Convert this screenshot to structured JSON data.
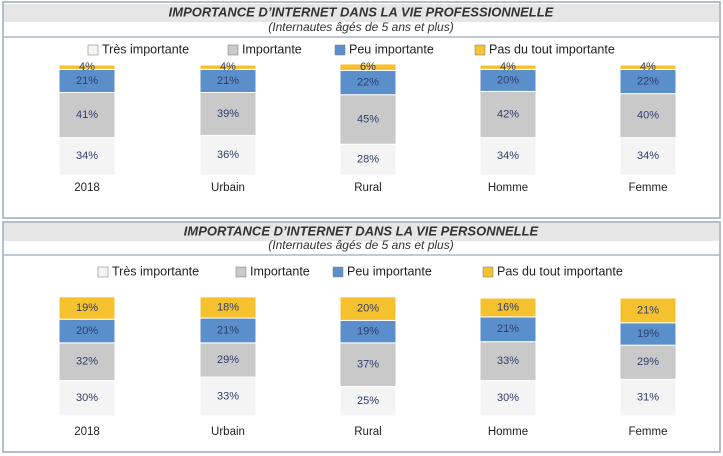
{
  "chart_data": [
    {
      "type": "stacked-bar",
      "title": "IMPORTANCE D’INTERNET DANS LA VIE PROFESSIONNELLE",
      "subtitle": "(Internautes âgés de 5 ans et plus)",
      "categories": [
        "2018",
        "Urbain",
        "Rural",
        "Homme",
        "Femme"
      ],
      "series": [
        {
          "name": "Très importante",
          "color": "#f4f4f4",
          "values": [
            34,
            36,
            28,
            34,
            34
          ],
          "value_labels": [
            "34%",
            "36%",
            "28%",
            "34%",
            "34%"
          ]
        },
        {
          "name": "Importante",
          "color": "#c9c9c9",
          "values": [
            41,
            39,
            45,
            42,
            40
          ],
          "value_labels": [
            "41%",
            "39%",
            "45%",
            "42%",
            "40%"
          ]
        },
        {
          "name": "Peu importante",
          "color": "#5b8fcb",
          "values": [
            21,
            21,
            22,
            20,
            22
          ],
          "value_labels": [
            "21%",
            "21%",
            "22%",
            "20%",
            "22%"
          ]
        },
        {
          "name": "Pas du tout importante",
          "color": "#f6c12e",
          "values": [
            4,
            4,
            6,
            4,
            4
          ],
          "value_labels": [
            "4%",
            "4%",
            "6%",
            "4%",
            "4%"
          ]
        }
      ]
    },
    {
      "type": "stacked-bar",
      "title": "IMPORTANCE D’INTERNET DANS LA VIE PERSONNELLE",
      "subtitle": "(Internautes âgés de 5 ans et plus)",
      "categories": [
        "2018",
        "Urbain",
        "Rural",
        "Homme",
        "Femme"
      ],
      "series": [
        {
          "name": "Très importante",
          "color": "#f4f4f4",
          "values": [
            30,
            33,
            25,
            30,
            31
          ],
          "value_labels": [
            "30%",
            "33%",
            "25%",
            "30%",
            "31%"
          ]
        },
        {
          "name": "Importante",
          "color": "#c9c9c9",
          "values": [
            32,
            29,
            37,
            33,
            29
          ],
          "value_labels": [
            "32%",
            "29%",
            "37%",
            "33%",
            "29%"
          ]
        },
        {
          "name": "Peu importante",
          "color": "#5b8fcb",
          "values": [
            20,
            21,
            19,
            21,
            19
          ],
          "value_labels": [
            "20%",
            "21%",
            "19%",
            "21%",
            "19%"
          ]
        },
        {
          "name": "Pas du tout importante",
          "color": "#f6c12e",
          "values": [
            19,
            18,
            20,
            16,
            21
          ],
          "value_labels": [
            "19%",
            "18%",
            "20%",
            "16%",
            "21%"
          ]
        }
      ]
    }
  ]
}
